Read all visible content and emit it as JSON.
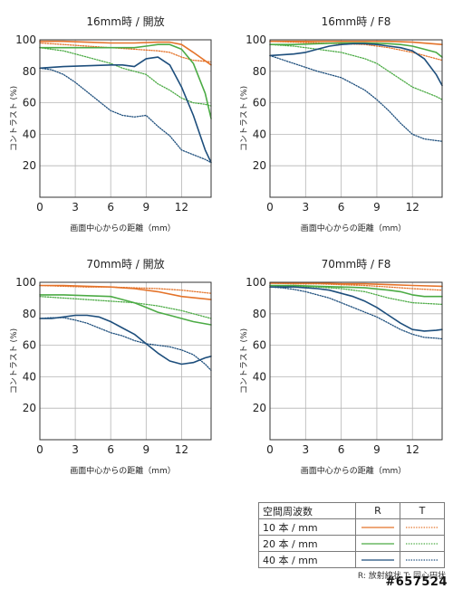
{
  "chart_data": [
    {
      "type": "line",
      "title": "16mm時 / 開放",
      "xlabel": "画面中心からの距離（mm）",
      "ylabel": "コントラスト (%)",
      "xlim": [
        0,
        14.5
      ],
      "ylim": [
        0,
        100
      ],
      "xticks": [
        0,
        3,
        6,
        9,
        12
      ],
      "yticks": [
        20,
        40,
        60,
        80,
        100
      ],
      "series": [
        {
          "freq": "10",
          "dir": "R",
          "x": [
            0,
            2,
            4,
            6,
            8,
            10,
            11,
            12,
            13,
            14.5
          ],
          "y": [
            99,
            99,
            98.5,
            98,
            98,
            98.5,
            98.5,
            97,
            92,
            84
          ]
        },
        {
          "freq": "10",
          "dir": "T",
          "x": [
            0,
            2,
            4,
            6,
            8,
            10,
            11,
            12,
            13,
            14.5
          ],
          "y": [
            98,
            97,
            96,
            95,
            94,
            93,
            92,
            89,
            87,
            86
          ]
        },
        {
          "freq": "20",
          "dir": "R",
          "x": [
            0,
            2,
            4,
            6,
            8,
            9,
            10,
            11,
            12,
            13,
            14,
            14.5
          ],
          "y": [
            95,
            95,
            95,
            95,
            95,
            96,
            97,
            97,
            94,
            85,
            66,
            50
          ]
        },
        {
          "freq": "20",
          "dir": "T",
          "x": [
            0,
            2,
            4,
            6,
            7,
            8,
            9,
            10,
            11,
            12,
            13,
            14,
            14.5
          ],
          "y": [
            95,
            93,
            89,
            85,
            82,
            80,
            78,
            72,
            68,
            63,
            60,
            59,
            58
          ]
        },
        {
          "freq": "40",
          "dir": "R",
          "x": [
            0,
            2,
            4,
            6,
            7,
            8,
            9,
            10,
            11,
            12,
            13,
            14,
            14.5
          ],
          "y": [
            82,
            83,
            83.5,
            84,
            84,
            83,
            88,
            89,
            84,
            70,
            52,
            30,
            22
          ]
        },
        {
          "freq": "40",
          "dir": "T",
          "x": [
            0,
            1,
            2,
            3,
            4,
            5,
            6,
            7,
            8,
            9,
            10,
            11,
            12,
            13,
            14,
            14.5
          ],
          "y": [
            82,
            81,
            78,
            73,
            67,
            61,
            55,
            52,
            51,
            52,
            45,
            39,
            30,
            27,
            24,
            22
          ]
        }
      ]
    },
    {
      "type": "line",
      "title": "16mm時 / F8",
      "xlabel": "画面中心からの距離（mm）",
      "ylabel": "コントラスト (%)",
      "xlim": [
        0,
        14.5
      ],
      "ylim": [
        0,
        100
      ],
      "xticks": [
        0,
        3,
        6,
        9,
        12
      ],
      "yticks": [
        20,
        40,
        60,
        80,
        100
      ],
      "series": [
        {
          "freq": "10",
          "dir": "R",
          "x": [
            0,
            2,
            4,
            6,
            8,
            10,
            12,
            14.5
          ],
          "y": [
            99,
            99,
            99,
            99,
            99,
            99,
            98.5,
            97
          ]
        },
        {
          "freq": "10",
          "dir": "T",
          "x": [
            0,
            2,
            4,
            6,
            8,
            10,
            12,
            14.5
          ],
          "y": [
            99,
            98.5,
            98,
            97.5,
            97,
            95,
            92,
            87
          ]
        },
        {
          "freq": "20",
          "dir": "R",
          "x": [
            0,
            2,
            4,
            6,
            8,
            10,
            11,
            12,
            13,
            14,
            14.5
          ],
          "y": [
            97,
            97,
            97.5,
            98,
            98,
            97.5,
            97,
            96,
            94,
            92,
            89
          ]
        },
        {
          "freq": "20",
          "dir": "T",
          "x": [
            0,
            2,
            4,
            6,
            7,
            8,
            9,
            10,
            11,
            12,
            13,
            14,
            14.5
          ],
          "y": [
            97,
            96,
            94,
            92,
            90,
            88,
            85,
            80,
            75,
            70,
            67,
            64,
            62
          ]
        },
        {
          "freq": "40",
          "dir": "R",
          "x": [
            0,
            2,
            3,
            4,
            5,
            6,
            7,
            8,
            9,
            10,
            11,
            12,
            13,
            14,
            14.5
          ],
          "y": [
            90,
            91,
            92,
            94,
            96,
            97,
            97.5,
            97.5,
            97,
            96,
            95,
            93,
            88,
            78,
            71
          ]
        },
        {
          "freq": "40",
          "dir": "T",
          "x": [
            0,
            2,
            4,
            5,
            6,
            7,
            8,
            9,
            10,
            11,
            12,
            13,
            14,
            14.5
          ],
          "y": [
            90,
            85,
            80,
            78,
            76,
            72,
            68,
            62,
            55,
            47,
            40,
            37,
            36,
            35.5
          ]
        }
      ]
    },
    {
      "type": "line",
      "title": "70mm時 / 開放",
      "xlabel": "画面中心からの距離（mm）",
      "ylabel": "コントラスト (%)",
      "xlim": [
        0,
        14.5
      ],
      "ylim": [
        0,
        100
      ],
      "xticks": [
        0,
        3,
        6,
        9,
        12
      ],
      "yticks": [
        20,
        40,
        60,
        80,
        100
      ],
      "series": [
        {
          "freq": "10",
          "dir": "R",
          "x": [
            0,
            2,
            4,
            6,
            8,
            10,
            12,
            14.5
          ],
          "y": [
            98,
            98,
            97.5,
            97,
            96,
            94,
            91,
            89
          ]
        },
        {
          "freq": "10",
          "dir": "T",
          "x": [
            0,
            2,
            4,
            6,
            8,
            10,
            12,
            14.5
          ],
          "y": [
            98,
            97.5,
            97,
            97,
            96.5,
            96,
            95,
            93
          ]
        },
        {
          "freq": "20",
          "dir": "R",
          "x": [
            0,
            2,
            4,
            6,
            7,
            8,
            9,
            10,
            11,
            12,
            13,
            14.5
          ],
          "y": [
            92,
            92,
            91.5,
            91,
            89,
            87,
            84,
            81,
            79,
            77,
            75,
            73
          ]
        },
        {
          "freq": "20",
          "dir": "T",
          "x": [
            0,
            2,
            4,
            6,
            8,
            10,
            12,
            14.5
          ],
          "y": [
            91,
            90,
            89,
            88,
            87,
            85,
            82,
            77
          ]
        },
        {
          "freq": "40",
          "dir": "R",
          "x": [
            0,
            1,
            2,
            3,
            4,
            5,
            6,
            7,
            8,
            9,
            10,
            11,
            12,
            13,
            14,
            14.5
          ],
          "y": [
            77,
            77,
            78,
            79,
            79,
            78,
            75,
            71,
            67,
            61,
            55,
            50,
            48,
            49,
            52,
            53
          ]
        },
        {
          "freq": "40",
          "dir": "T",
          "x": [
            0,
            1,
            2,
            3,
            4,
            5,
            6,
            7,
            8,
            9,
            10,
            11,
            12,
            13,
            14,
            14.5
          ],
          "y": [
            77,
            77.5,
            77.5,
            76,
            74,
            71,
            68,
            66,
            63,
            61,
            60,
            59,
            57,
            54,
            48,
            44
          ]
        }
      ]
    },
    {
      "type": "line",
      "title": "70mm時 / F8",
      "xlabel": "画面中心からの距離（mm）",
      "ylabel": "コントラスト (%)",
      "xlim": [
        0,
        14.5
      ],
      "ylim": [
        0,
        100
      ],
      "xticks": [
        0,
        3,
        6,
        9,
        12
      ],
      "yticks": [
        20,
        40,
        60,
        80,
        100
      ],
      "series": [
        {
          "freq": "10",
          "dir": "R",
          "x": [
            0,
            2,
            4,
            6,
            8,
            10,
            12,
            14.5
          ],
          "y": [
            99.5,
            99.5,
            99.5,
            99,
            99,
            98.5,
            98,
            97.5
          ]
        },
        {
          "freq": "10",
          "dir": "T",
          "x": [
            0,
            2,
            4,
            6,
            8,
            10,
            12,
            14.5
          ],
          "y": [
            99.5,
            99,
            99,
            98.5,
            98,
            97,
            96,
            95
          ]
        },
        {
          "freq": "20",
          "dir": "R",
          "x": [
            0,
            2,
            4,
            6,
            8,
            10,
            11,
            12,
            13,
            14.5
          ],
          "y": [
            98,
            98,
            97.5,
            97,
            96.5,
            95,
            94,
            92,
            91,
            91
          ]
        },
        {
          "freq": "20",
          "dir": "T",
          "x": [
            0,
            2,
            4,
            6,
            8,
            10,
            12,
            14.5
          ],
          "y": [
            98,
            97.5,
            97,
            96,
            94,
            90,
            87,
            86
          ]
        },
        {
          "freq": "40",
          "dir": "R",
          "x": [
            0,
            2,
            3,
            4,
            5,
            6,
            7,
            8,
            9,
            10,
            11,
            12,
            13,
            14,
            14.5
          ],
          "y": [
            97,
            97,
            96.5,
            96,
            95,
            93,
            91,
            88,
            84,
            79,
            74,
            70,
            69,
            69.5,
            70
          ]
        },
        {
          "freq": "40",
          "dir": "T",
          "x": [
            0,
            1,
            2,
            3,
            4,
            5,
            6,
            7,
            8,
            9,
            10,
            11,
            12,
            13,
            14,
            14.5
          ],
          "y": [
            97,
            96.5,
            95.5,
            94,
            92,
            90,
            87,
            84,
            81,
            78,
            74,
            70,
            67,
            65,
            64.5,
            64
          ]
        }
      ]
    }
  ],
  "colors": {
    "10": "#e4732a",
    "20": "#4cab45",
    "40": "#1d4e7c"
  },
  "legend": {
    "header": [
      "空間周波数",
      "R",
      "T"
    ],
    "rows": [
      {
        "key": "10",
        "label": "10 本 / mm"
      },
      {
        "key": "20",
        "label": "20 本 / mm"
      },
      {
        "key": "40",
        "label": "40 本 / mm"
      }
    ]
  },
  "note": "R: 放射線状  T: 同心円状",
  "watermark": "#657524"
}
